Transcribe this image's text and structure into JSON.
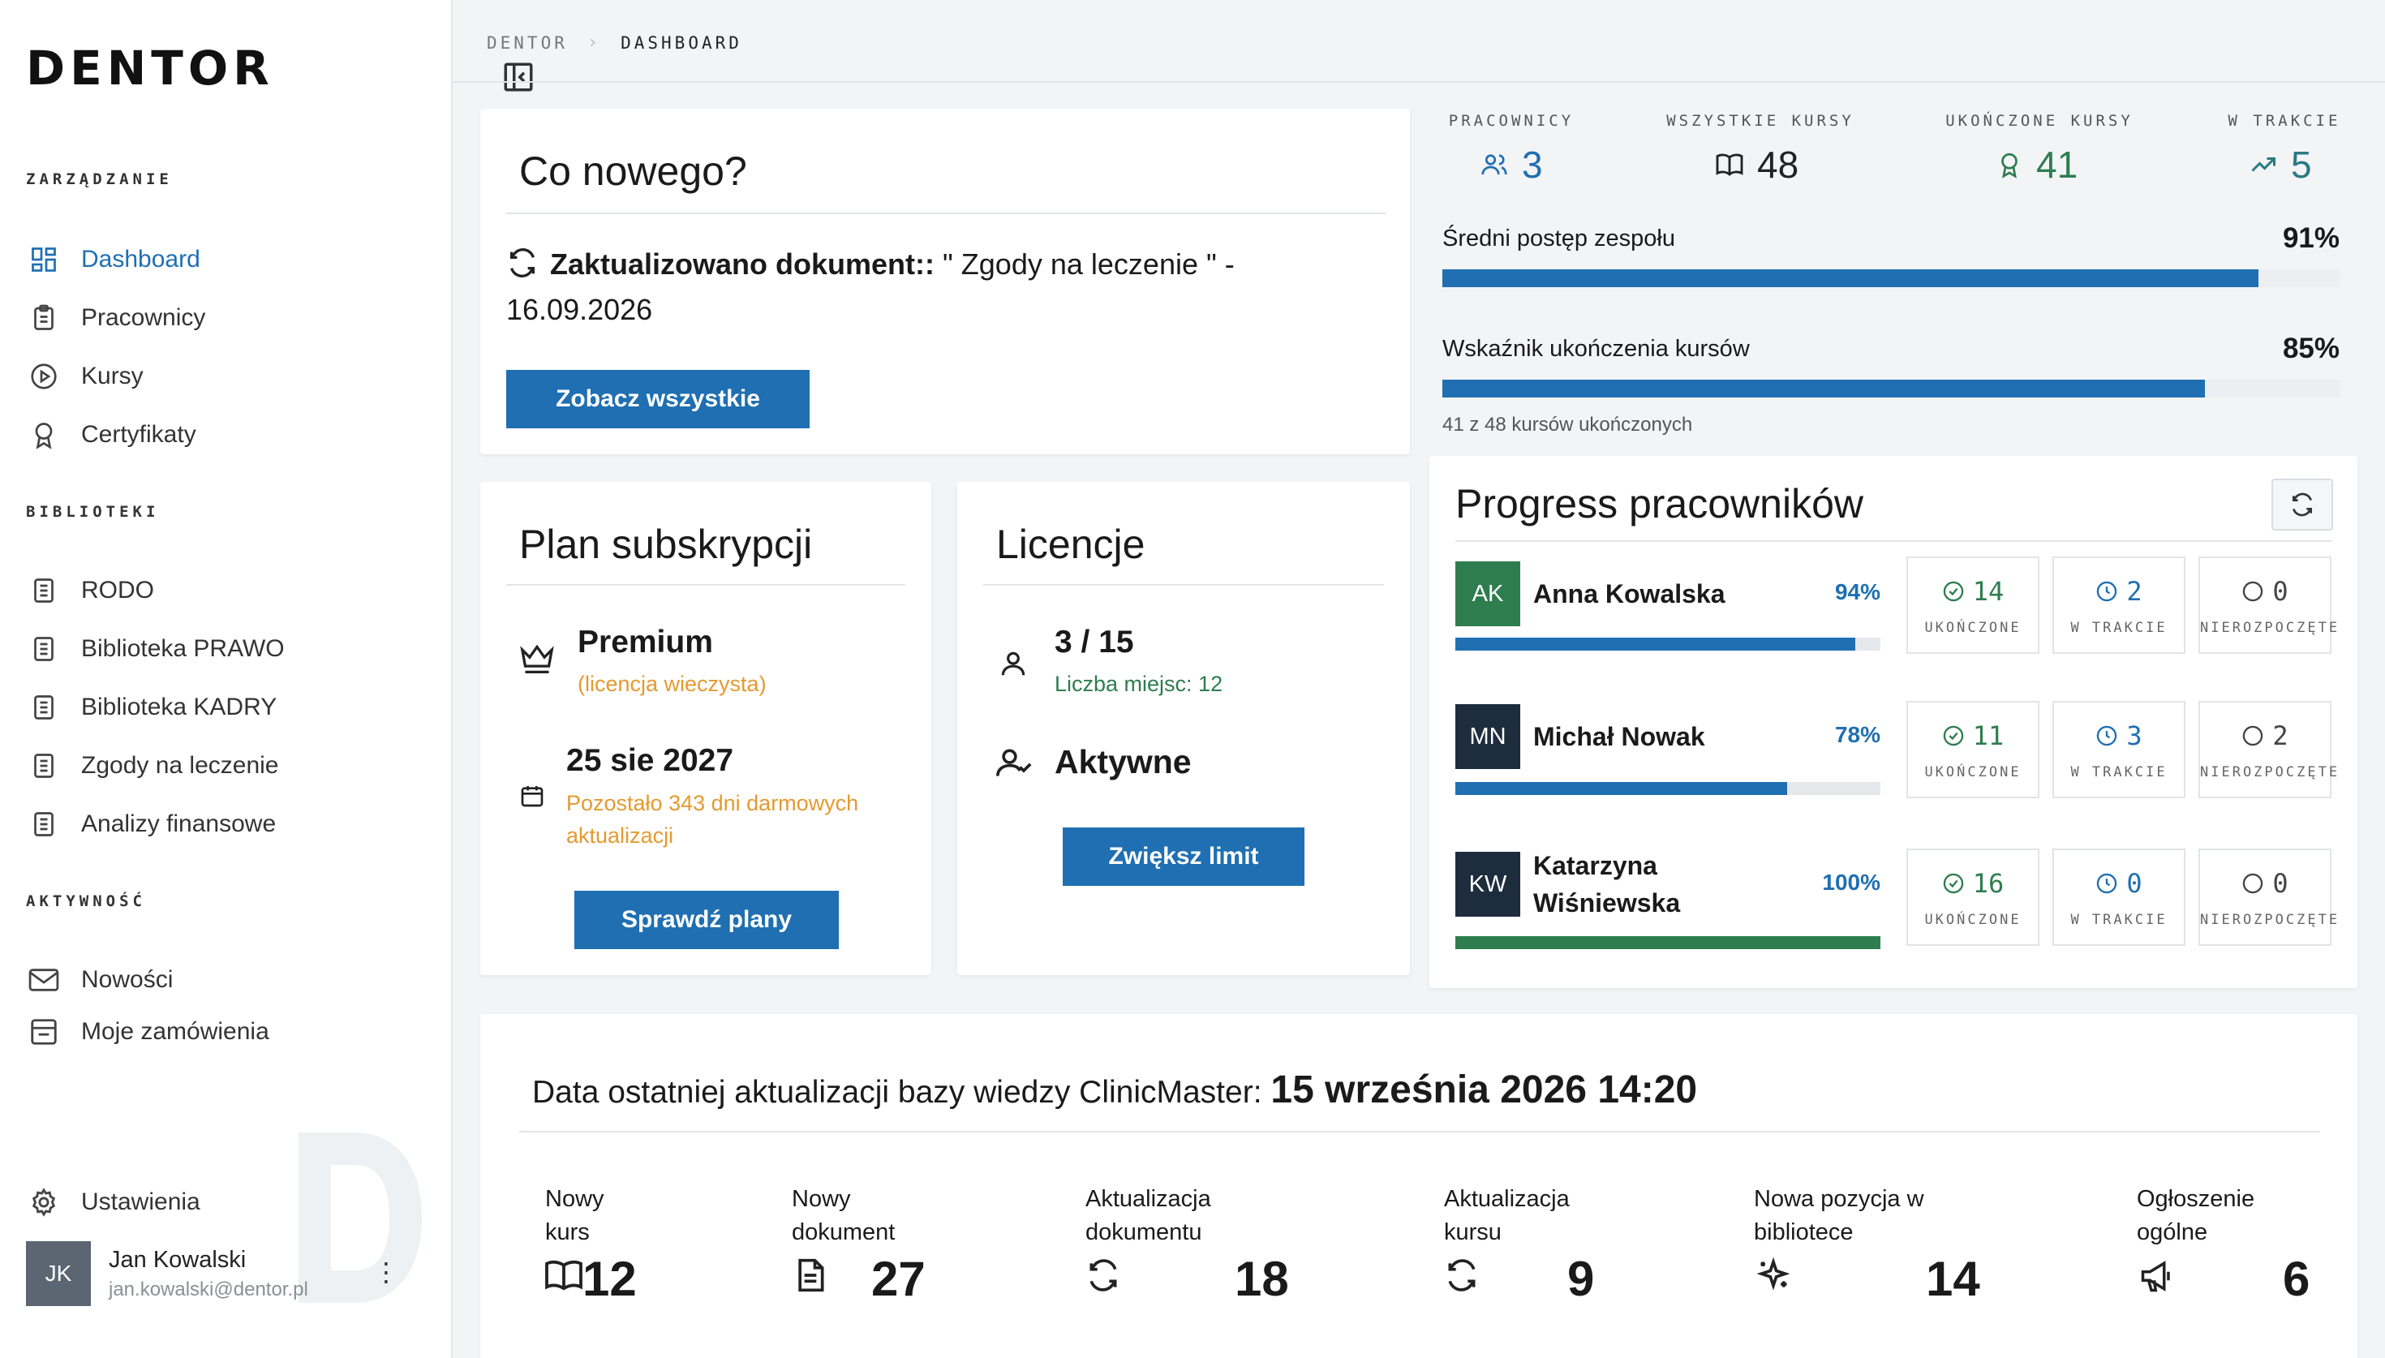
{
  "brand": {
    "logo": "DENTOR"
  },
  "sidebar": {
    "sections": [
      {
        "title": "ZARZĄDZANIE"
      },
      {
        "title": "BIBLIOTEKI"
      },
      {
        "title": "AKTYWNOŚĆ"
      }
    ],
    "management": [
      {
        "label": "Dashboard",
        "icon": "dashboard-icon"
      },
      {
        "label": "Pracownicy",
        "icon": "clipboard-icon"
      },
      {
        "label": "Kursy",
        "icon": "play-circle-icon"
      },
      {
        "label": "Certyfikaty",
        "icon": "award-icon"
      }
    ],
    "libraries": [
      {
        "label": "RODO"
      },
      {
        "label": "Biblioteka PRAWO"
      },
      {
        "label": "Biblioteka KADRY"
      },
      {
        "label": "Zgody na leczenie"
      },
      {
        "label": "Analizy finansowe"
      }
    ],
    "activity": [
      {
        "label": "Nowości",
        "icon": "mail-icon"
      },
      {
        "label": "Moje zamówienia",
        "icon": "orders-icon"
      }
    ],
    "settings_label": "Ustawienia",
    "user": {
      "initials": "JK",
      "name": "Jan Kowalski",
      "email": "jan.kowalski@dentor.pl",
      "menu": "⋮"
    }
  },
  "breadcrumb": {
    "root": "DENTOR",
    "separator": "›",
    "current": "DASHBOARD"
  },
  "news": {
    "title": "Co nowego?",
    "item_bold": "Zaktualizowano dokument::",
    "item_rest": " \" Zgody na leczenie \" -",
    "item_date": "16.09.2026",
    "button": "Zobacz wszystkie"
  },
  "stats": {
    "employees": {
      "label": "PRACOWNICY",
      "value": "3"
    },
    "all_courses": {
      "label": "WSZYSTKIE KURSY",
      "value": "48"
    },
    "completed": {
      "label": "UKOŃCZONE KURSY",
      "value": "41"
    },
    "in_progress": {
      "label": "W TRAKCIE",
      "value": "5"
    },
    "avg_progress": {
      "label": "Średni postęp zespołu",
      "value": "91%",
      "fraction": 0.91
    },
    "completion_rate": {
      "label": "Wskaźnik ukończenia kursów",
      "value": "85%",
      "fraction": 0.85,
      "note": "41 z 48 kursów ukończonych"
    }
  },
  "subscription": {
    "title": "Plan subskrypcji",
    "plan": "Premium",
    "plan_note": "(licencja wieczysta)",
    "date": "25 sie 2027",
    "date_note_1": "Pozostało 343 dni darmowych",
    "date_note_2": "aktualizacji",
    "button": "Sprawdź plany"
  },
  "licenses": {
    "title": "Licencje",
    "count": "3 / 15",
    "seats": "Liczba miejsc: 12",
    "status": "Aktywne",
    "button": "Zwiększ limit"
  },
  "progress": {
    "title": "Progress pracowników",
    "labels": {
      "completed": "UKOŃCZONE",
      "in_progress": "W TRAKCIE",
      "not_started": "NIEROZPOCZĘTE"
    },
    "employees": [
      {
        "initials": "AK",
        "name_1": "Anna Kowalska",
        "name_2": "",
        "percent": "94%",
        "fraction": 0.94,
        "completed": "14",
        "in_progress": "2",
        "not_started": "0",
        "color": "#2e7d4f"
      },
      {
        "initials": "MN",
        "name_1": "Michał Nowak",
        "name_2": "",
        "percent": "78%",
        "fraction": 0.78,
        "completed": "11",
        "in_progress": "3",
        "not_started": "2",
        "color": "#1e2d3d"
      },
      {
        "initials": "KW",
        "name_1": "Katarzyna",
        "name_2": "Wiśniewska",
        "percent": "100%",
        "fraction": 1.0,
        "completed": "16",
        "in_progress": "0",
        "not_started": "0",
        "color": "#1e2d3d"
      }
    ]
  },
  "kb": {
    "title": "Data ostatniej aktualizacji bazy wiedzy ClinicMaster: ",
    "date": "15 września 2026 14:20",
    "items": [
      {
        "label_1": "Nowy",
        "label_2": "kurs",
        "value": "12",
        "icon": "book-icon"
      },
      {
        "label_1": "Nowy",
        "label_2": "dokument",
        "value": "27",
        "icon": "document-icon"
      },
      {
        "label_1": "Aktualizacja",
        "label_2": "dokumentu",
        "value": "18",
        "icon": "refresh-icon"
      },
      {
        "label_1": "Aktualizacja",
        "label_2": "kursu",
        "value": "9",
        "icon": "refresh-icon"
      },
      {
        "label_1": "Nowa pozycja w",
        "label_2": "bibliotece",
        "value": "14",
        "icon": "sparkle-icon"
      },
      {
        "label_1": "Ogłoszenie",
        "label_2": "ogólne",
        "value": "6",
        "icon": "megaphone-icon"
      }
    ]
  },
  "colors": {
    "accent": "#1f6fb2",
    "success": "#2e7d4f",
    "warning": "#e59a2f",
    "teal": "#2a7a82"
  }
}
